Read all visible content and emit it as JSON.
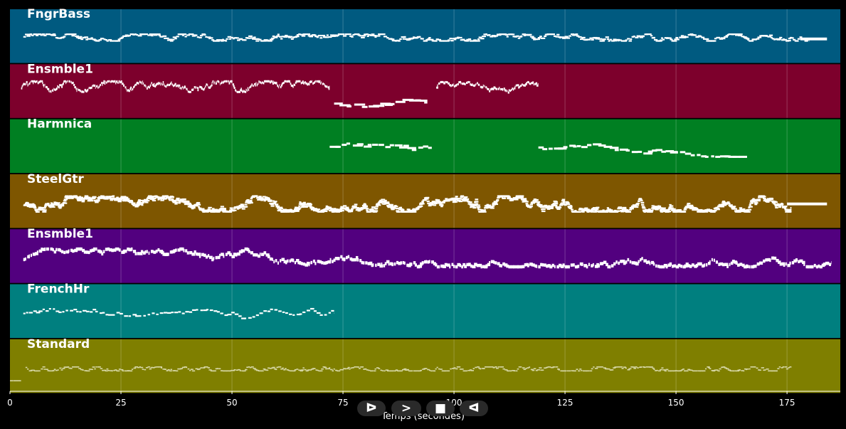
{
  "chart_data": {
    "type": "piano-roll",
    "xlabel": "Temps (secondes)",
    "xlim": [
      0,
      187
    ],
    "xticks": [
      0,
      25,
      50,
      75,
      100,
      125,
      150,
      175
    ],
    "grid": true,
    "tracks": [
      {
        "name": "FngrBass",
        "color": "#005a80",
        "note_color": "#ffffff",
        "note_size": "small",
        "segments": [
          {
            "x0": 3,
            "x1": 180,
            "pitch": [
              0.45,
              0.62
            ],
            "density": 3.2
          },
          {
            "x0": 178,
            "x1": 184,
            "pitch": [
              0.5,
              0.5
            ],
            "density": 0.5,
            "sustain": true
          }
        ]
      },
      {
        "name": "Ensmble1",
        "color": "#7d002c",
        "note_color": "#ffffff",
        "note_size": "medium",
        "segments": [
          {
            "x0": 2.5,
            "x1": 72,
            "pitch": [
              0.55,
              0.82
            ],
            "density": 6
          },
          {
            "x0": 73,
            "x1": 94,
            "pitch": [
              0.1,
              0.35
            ],
            "density": 0.8
          },
          {
            "x0": 96,
            "x1": 119,
            "pitch": [
              0.45,
              0.8
            ],
            "density": 4.5
          }
        ]
      },
      {
        "name": "Harmnica",
        "color": "#007f22",
        "note_color": "#ffffff",
        "note_size": "medium",
        "segments": [
          {
            "x0": 72,
            "x1": 95,
            "pitch": [
              0.3,
              0.7
            ],
            "density": 0.9
          },
          {
            "x0": 119,
            "x1": 166,
            "pitch": [
              0.3,
              0.7
            ],
            "density": 1
          }
        ]
      },
      {
        "name": "SteelGtr",
        "color": "#7e5600",
        "note_color": "#ffffff",
        "note_size": "small",
        "segments": [
          {
            "x0": 3,
            "x1": 176,
            "pitch": [
              0.3,
              0.7
            ],
            "density": 10
          },
          {
            "x0": 175,
            "x1": 184,
            "pitch": [
              0.5,
              0.5
            ],
            "density": 0.3,
            "sustain": true
          }
        ]
      },
      {
        "name": "Ensmble1",
        "color": "#52007f",
        "note_color": "#ffffff",
        "note_size": "large",
        "segments": [
          {
            "x0": 3,
            "x1": 185,
            "pitch": [
              0.3,
              0.75
            ],
            "density": 2.5
          }
        ]
      },
      {
        "name": "FrenchHr",
        "color": "#007f7f",
        "note_color": "#ffffff",
        "note_size": "small",
        "segments": [
          {
            "x0": 3,
            "x1": 73,
            "pitch": [
              0.25,
              0.75
            ],
            "density": 1.4
          }
        ]
      },
      {
        "name": "Standard",
        "color": "#7f7f00",
        "note_color": "#d8d8a8",
        "note_size": "tiny",
        "segments": [
          {
            "x0": 0,
            "x1": 2.5,
            "pitch": [
              0.2,
              0.2
            ],
            "density": 2
          },
          {
            "x0": 3.5,
            "x1": 176,
            "pitch": [
              0.45,
              0.55
            ],
            "density": 3
          }
        ]
      }
    ]
  },
  "controls": {
    "play_label": "ᐅ",
    "next_label": ">",
    "stop_label": "■",
    "back_label": "ᐊ"
  }
}
